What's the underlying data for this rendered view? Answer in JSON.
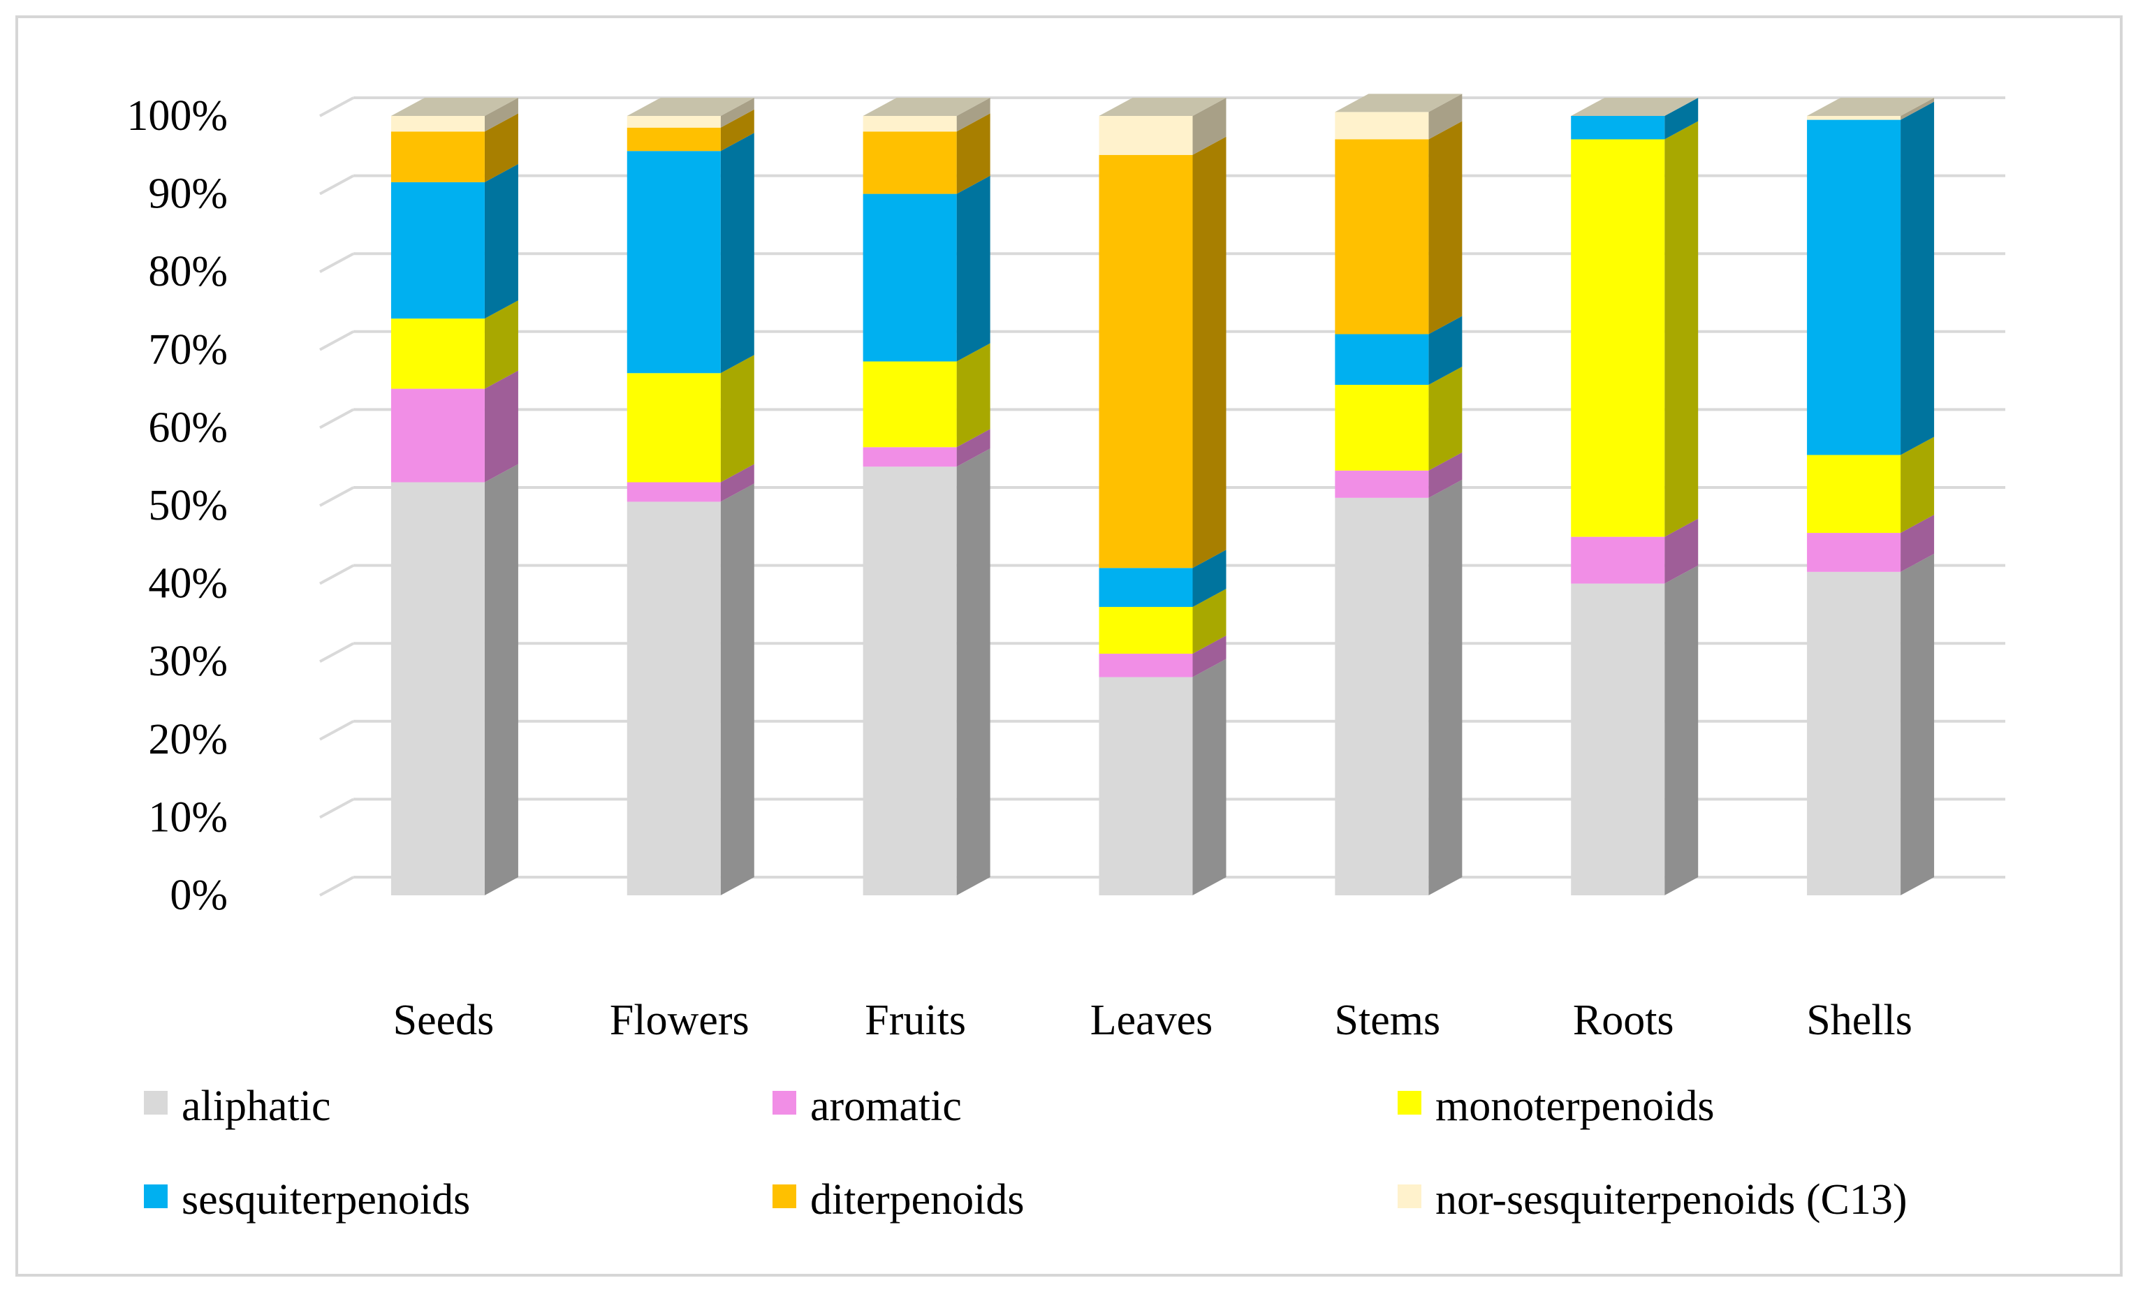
{
  "chart_data": {
    "type": "bar",
    "stacked": true,
    "percent": true,
    "style": "3d-column",
    "title": "",
    "xlabel": "",
    "ylabel": "",
    "ylim": [
      0,
      100
    ],
    "y_ticks": [
      "0%",
      "10%",
      "20%",
      "30%",
      "40%",
      "50%",
      "60%",
      "70%",
      "80%",
      "90%",
      "100%"
    ],
    "grid": true,
    "legend_position": "bottom",
    "categories": [
      "Seeds",
      "Flowers",
      "Fruits",
      "Leaves",
      "Stems",
      "Roots",
      "Shells"
    ],
    "series": [
      {
        "name": "aliphatic",
        "color": "#d9d9d9",
        "values": [
          53,
          50.5,
          55,
          28,
          51,
          40,
          41.5
        ]
      },
      {
        "name": "aromatic",
        "color": "#f18ee6",
        "values": [
          12,
          2.5,
          2.5,
          3,
          3.5,
          6,
          5
        ]
      },
      {
        "name": "monoterpenoids",
        "color": "#ffff00",
        "values": [
          9,
          14,
          11,
          6,
          11,
          51,
          10
        ]
      },
      {
        "name": "sesquiterpenoids",
        "color": "#00b0f0",
        "values": [
          17.5,
          28.5,
          21.5,
          5,
          6.5,
          3,
          43
        ]
      },
      {
        "name": "diterpenoids",
        "color": "#ffc000",
        "values": [
          6.5,
          3,
          8,
          53,
          25,
          0,
          0
        ]
      },
      {
        "name": "nor-sesquiterpenoids (C13)",
        "color": "#fff2cc",
        "values": [
          2,
          1.5,
          2,
          5,
          3.5,
          0,
          0.5
        ]
      }
    ]
  }
}
